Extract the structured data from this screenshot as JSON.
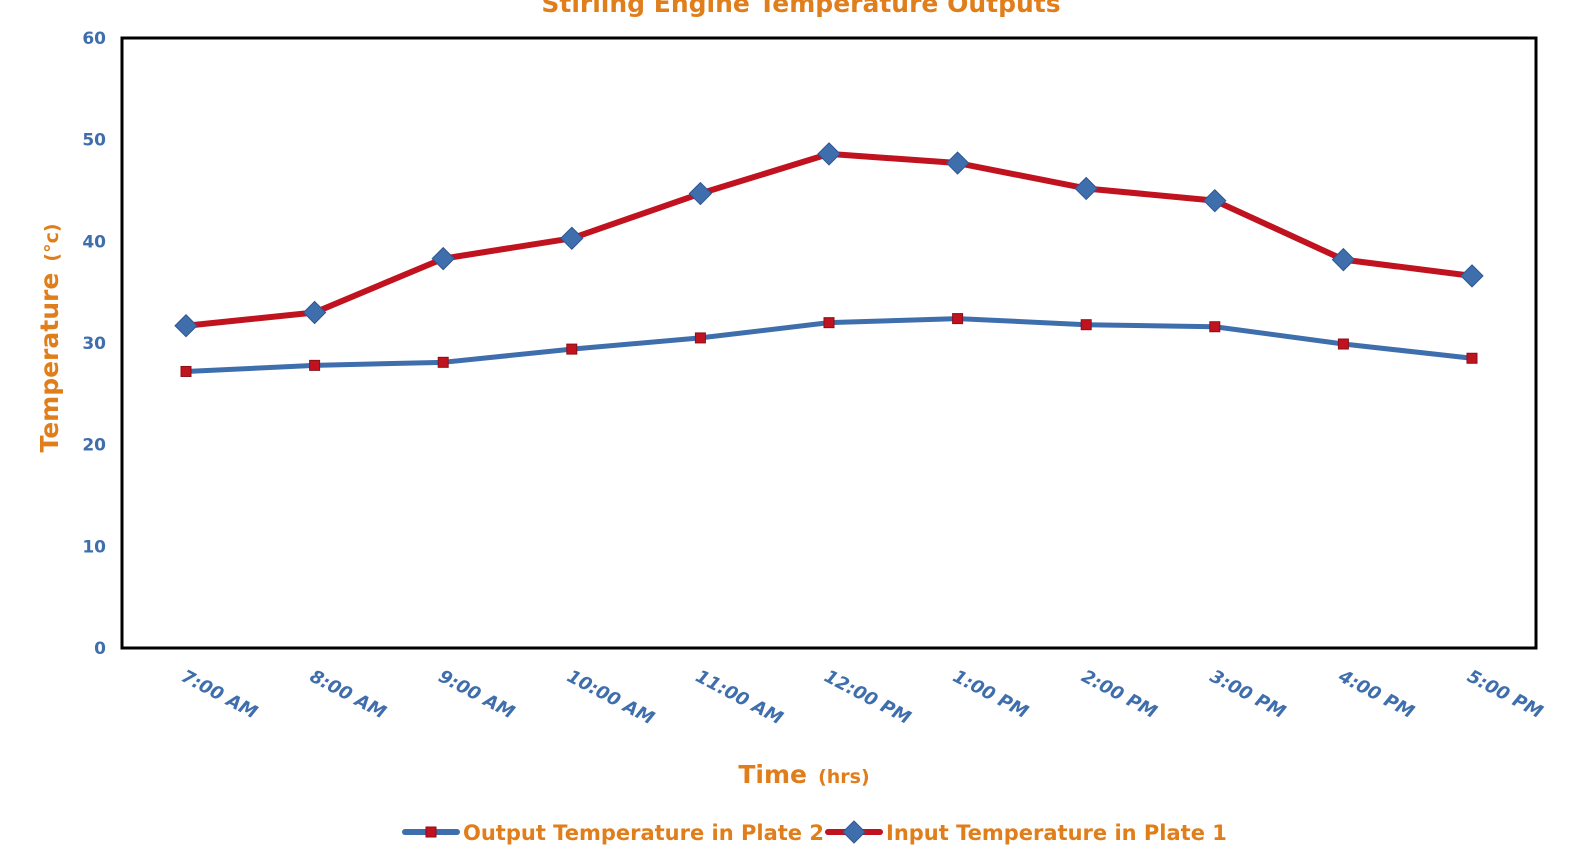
{
  "chart_data": {
    "type": "line",
    "title": "Stirling Engine Temperature Outputs",
    "xlabel": "Time",
    "xlabel_unit": "(hrs)",
    "ylabel": "Temperature",
    "ylabel_unit": "(°c)",
    "ylim": [
      0,
      60
    ],
    "yticks": [
      0,
      10,
      20,
      30,
      40,
      50,
      60
    ],
    "grid": false,
    "legend_position": "bottom",
    "categories": [
      "7:00 AM",
      "8:00 AM",
      "9:00 AM",
      "10:00 AM",
      "11:00 AM",
      "12:00 PM",
      "1:00 PM",
      "2:00 PM",
      "3:00 PM",
      "4:00 PM",
      "5:00 PM"
    ],
    "series": [
      {
        "name": "Output Temperature in Plate 2",
        "values": [
          27.2,
          27.8,
          28.1,
          29.4,
          30.5,
          32.0,
          32.4,
          31.8,
          31.6,
          29.9,
          28.5
        ],
        "line_color": "#3F6EAD",
        "marker": "square",
        "marker_color": "#C0131F"
      },
      {
        "name": "Input Temperature in Plate 1",
        "values": [
          31.7,
          33.0,
          38.3,
          40.3,
          44.7,
          48.6,
          47.7,
          45.2,
          44.0,
          38.2,
          36.6
        ],
        "line_color": "#C0131F",
        "marker": "diamond",
        "marker_color": "#3F6EAD"
      }
    ],
    "colors": {
      "title": "#E07E1B",
      "axis_title": "#E07E1B",
      "tick_labels": "#3F6EAD",
      "frame": "#000000"
    }
  }
}
